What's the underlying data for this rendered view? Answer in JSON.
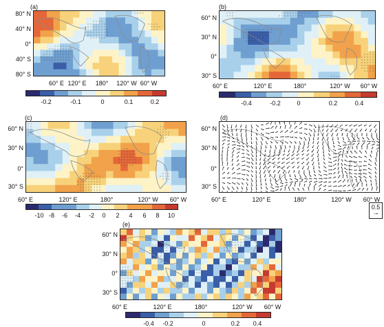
{
  "panels": [
    {
      "label": "(a)",
      "lat_labels": [
        "80° N",
        "40° N",
        "0°",
        "40° S",
        "80° S"
      ],
      "lon_labels": [
        "60° E",
        "120° E",
        "180°",
        "120° W",
        "60° W"
      ],
      "colorbar_labels": [
        "-0.2",
        "-0.1",
        "0",
        "0.1",
        "0.2"
      ]
    },
    {
      "label": "(b)",
      "lat_labels": [
        "60° N",
        "30° N",
        "0°",
        "30° S"
      ],
      "lon_labels": [
        "60° E",
        "120° E",
        "180°",
        "120° W",
        "60° W"
      ],
      "colorbar_labels": [
        "-0.4",
        "-0.2",
        "0",
        "0.2",
        "0.4"
      ]
    },
    {
      "label": "(c)",
      "lat_labels": [
        "60° N",
        "30° N",
        "0°",
        "30° S"
      ],
      "lon_labels": [
        "60° E",
        "120° E",
        "180°",
        "120° W",
        "60° W"
      ],
      "colorbar_labels": [
        "-10",
        "-8",
        "-6",
        "-4",
        "-2",
        "0",
        "2",
        "4",
        "6",
        "8",
        "10"
      ]
    },
    {
      "label": "(d)",
      "lat_labels": [
        "60° N",
        "30° N",
        "0°",
        "30° S"
      ],
      "lon_labels": [
        "60° E",
        "120° E",
        "180°",
        "120° W",
        "60° W"
      ],
      "reference_vector": "0.5"
    },
    {
      "label": "(e)",
      "lat_labels": [
        "60° N",
        "30° N",
        "0°",
        "30° S"
      ],
      "lon_labels": [
        "60° E",
        "120° E",
        "180°",
        "120° W",
        "60° W"
      ],
      "colorbar_labels": [
        "-0.4",
        "-0.2",
        "0",
        "0.2",
        "0.4"
      ]
    }
  ],
  "colors": {
    "diverging": [
      "#2b2a6e",
      "#3a5ea8",
      "#6f9fd0",
      "#a9d0ea",
      "#dff0f7",
      "#fdf3c6",
      "#f7d27a",
      "#f1a24a",
      "#e4673a",
      "#c63a2f"
    ],
    "land_outline": "#8a8a8a",
    "stipple": "#333333",
    "vector": "#111111"
  }
}
